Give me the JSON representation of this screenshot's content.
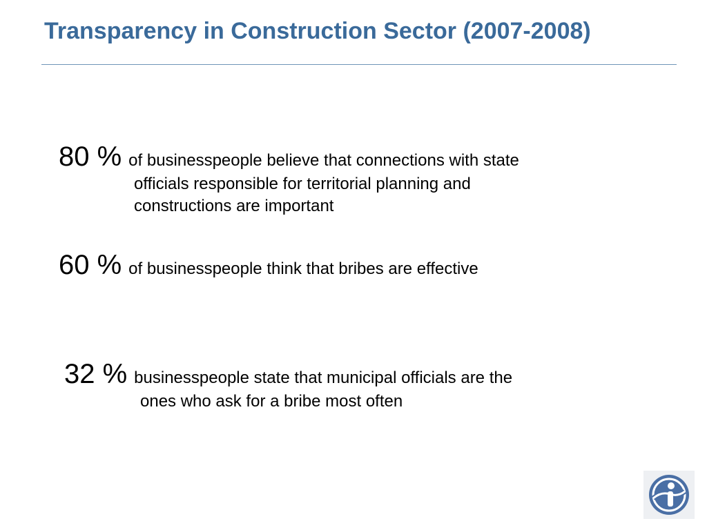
{
  "slide": {
    "title": "Transparency in Construction Sector (2007-2008)",
    "accent_color": "#3a6a9a"
  },
  "stats": [
    {
      "percent": "80 %",
      "lines": [
        "of businesspeople believe that connections with state",
        "officials responsible for territorial planning and",
        "constructions are important"
      ]
    },
    {
      "percent": "60 %",
      "lines": [
        "of businesspeople think that bribes are effective"
      ]
    },
    {
      "percent": "32 %",
      "lines": [
        "businesspeople state that municipal officials are the",
        "ones who ask for a bribe most often"
      ]
    }
  ],
  "logo": {
    "icon": "transparency-international-logo-icon",
    "color": "#4a6fa5"
  }
}
